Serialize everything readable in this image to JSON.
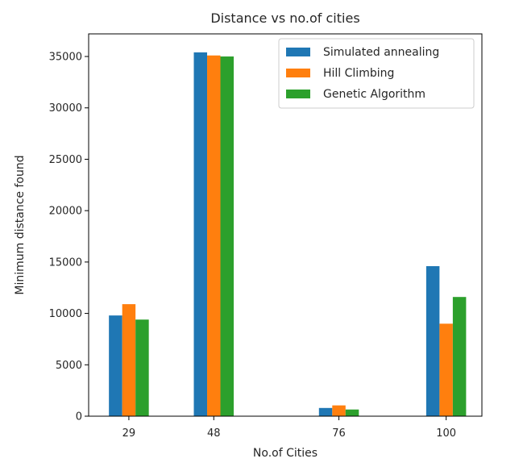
{
  "chart_data": {
    "type": "bar",
    "title": "Distance vs no.of cities",
    "xlabel": "No.of Cities",
    "ylabel": "Minimum distance found",
    "x": [
      29,
      48,
      76,
      100
    ],
    "categories": [
      "29",
      "48",
      "76",
      "100"
    ],
    "xlim": [
      20,
      108
    ],
    "ylim": [
      0,
      37200
    ],
    "yticks": [
      0,
      5000,
      10000,
      15000,
      20000,
      25000,
      30000,
      35000
    ],
    "series": [
      {
        "name": "Simulated annealing",
        "color": "#1f77b4",
        "values": [
          9800,
          35400,
          800,
          14600
        ]
      },
      {
        "name": "Hill Climbing",
        "color": "#ff7f0e",
        "values": [
          10900,
          35100,
          1050,
          9000
        ]
      },
      {
        "name": "Genetic Algorithm",
        "color": "#2ca02c",
        "values": [
          9400,
          35000,
          650,
          11600
        ]
      }
    ],
    "legend_position": "top-right",
    "grid": false
  }
}
